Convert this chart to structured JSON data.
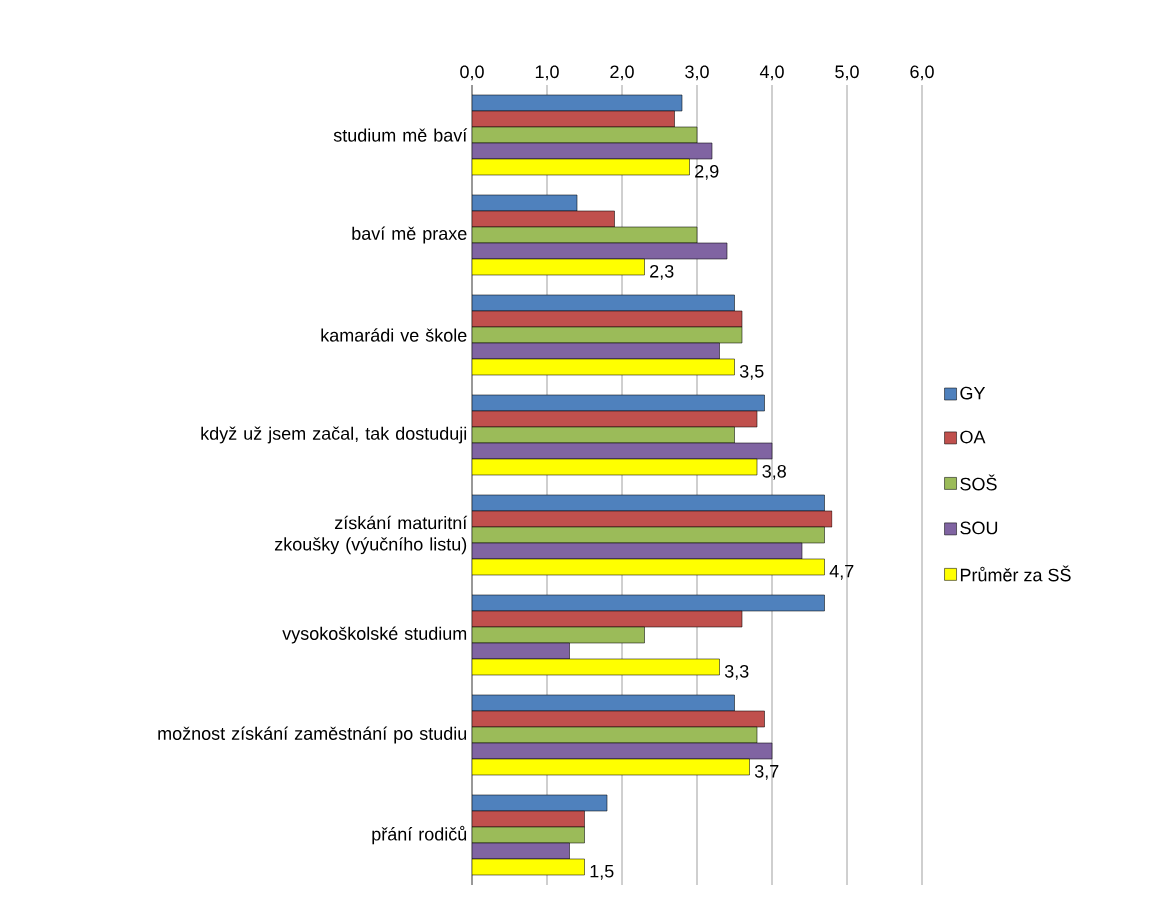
{
  "chart_data": {
    "type": "bar",
    "orientation": "horizontal",
    "categories": [
      "studium mě baví",
      "baví mě praxe",
      "kamarádi ve škole",
      "když už jsem začal, tak dostuduji",
      "získání maturitní zkoušky (výučního listu)",
      "vysokoškolské studium",
      "možnost získání zaměstnání po studiu",
      "přání rodičů"
    ],
    "series": [
      {
        "name": "GY",
        "color": "#4f81bd",
        "values": [
          2.8,
          1.4,
          3.5,
          3.9,
          4.7,
          4.7,
          3.5,
          1.8
        ]
      },
      {
        "name": "OA",
        "color": "#c0504d",
        "values": [
          2.7,
          1.9,
          3.6,
          3.8,
          4.8,
          3.6,
          3.9,
          1.5
        ]
      },
      {
        "name": "SOŠ",
        "color": "#9bbb59",
        "values": [
          3.0,
          3.0,
          3.6,
          3.5,
          4.7,
          2.3,
          3.8,
          1.5
        ]
      },
      {
        "name": "SOU",
        "color": "#8064a2",
        "values": [
          3.2,
          3.4,
          3.3,
          4.0,
          4.4,
          1.3,
          4.0,
          1.3
        ]
      },
      {
        "name": "Průměr za SŠ",
        "color": "#ffff00",
        "values": [
          2.9,
          2.3,
          3.5,
          3.8,
          4.7,
          3.3,
          3.7,
          1.5
        ],
        "value_labels": [
          "2,9",
          "2,3",
          "3,5",
          "3,8",
          "4,7",
          "3,3",
          "3,7",
          "1,5"
        ]
      }
    ],
    "xlim": [
      0,
      6
    ],
    "xticks": [
      {
        "value": 0,
        "label": "0,0"
      },
      {
        "value": 1,
        "label": "1,0"
      },
      {
        "value": 2,
        "label": "2,0"
      },
      {
        "value": 3,
        "label": "3,0"
      },
      {
        "value": 4,
        "label": "4,0"
      },
      {
        "value": 5,
        "label": "5,0"
      },
      {
        "value": 6,
        "label": "6,0"
      }
    ],
    "grid": "x",
    "legend": "right"
  }
}
